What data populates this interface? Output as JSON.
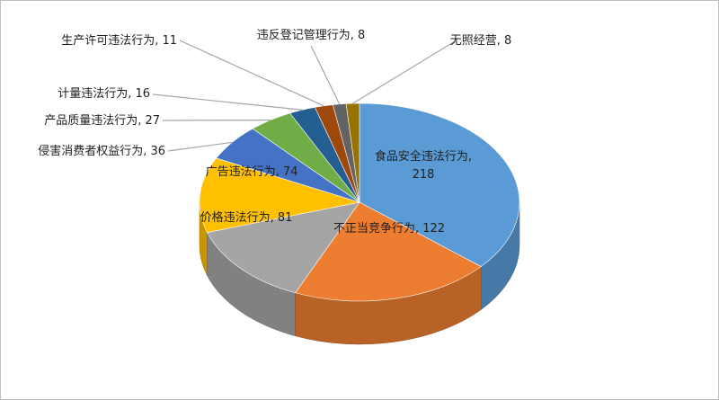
{
  "chart_data": {
    "type": "pie",
    "style": "3d",
    "title": "",
    "legend": "none",
    "start_angle_deg": 90,
    "direction": "clockwise",
    "slices": [
      {
        "label": "食品安全违法行为",
        "value": 218,
        "color": "#5b9bd5",
        "text": "食品安全违法行为, 218"
      },
      {
        "label": "不正当竞争行为",
        "value": 122,
        "color": "#ed7d31",
        "text": "不正当竞争行为, 122"
      },
      {
        "label": "价格违法行为",
        "value": 81,
        "color": "#a5a5a5",
        "text": "价格违法行为, 81"
      },
      {
        "label": "广告违法行为",
        "value": 74,
        "color": "#ffc000",
        "text": "广告违法行为, 74"
      },
      {
        "label": "侵害消费者权益行为",
        "value": 36,
        "color": "#4472c4",
        "text": "侵害消费者权益行为, 36"
      },
      {
        "label": "产品质量违法行为",
        "value": 27,
        "color": "#70ad47",
        "text": "产品质量违法行为, 27"
      },
      {
        "label": "计量违法行为",
        "value": 16,
        "color": "#255e91",
        "text": "计量违法行为, 16"
      },
      {
        "label": "生产许可违法行为",
        "value": 11,
        "color": "#9e480e",
        "text": "生产许可违法行为, 11"
      },
      {
        "label": "违反登记管理行为",
        "value": 8,
        "color": "#636363",
        "text": "违反登记管理行为, 8"
      },
      {
        "label": "无照经营",
        "value": 8,
        "color": "#997300",
        "text": "无照经营, 8"
      }
    ]
  }
}
